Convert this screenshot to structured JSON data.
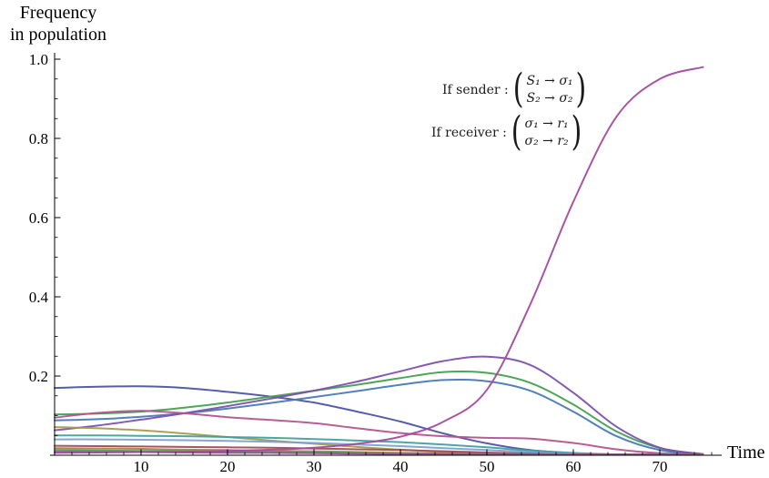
{
  "title": {
    "line1": "Frequency",
    "line2": "in population"
  },
  "x_axis_label": "Time",
  "annotations": {
    "sender": {
      "label": "If sender :",
      "rows": [
        "S₁ → σ₁",
        "S₂ → σ₂"
      ]
    },
    "receiver": {
      "label": "If receiver :",
      "rows": [
        "σ₁ → r₁",
        "σ₂ → r₂"
      ]
    }
  },
  "chart_data": {
    "type": "line",
    "title": "Frequency in population",
    "xlabel": "Time",
    "ylabel": "Frequency in population",
    "xlim": [
      0,
      77
    ],
    "ylim": [
      0,
      1.0
    ],
    "grid": false,
    "legend_position": "none",
    "x_ticks": [
      10,
      20,
      30,
      40,
      50,
      60,
      70
    ],
    "x_minor_step": 2,
    "x_minor_max": 76,
    "y_ticks": [
      0.2,
      0.4,
      0.6,
      0.8,
      1.0
    ],
    "y_tick_labels": [
      "0.2",
      "0.4",
      "0.6",
      "0.8",
      "1.0"
    ],
    "y_minor_step": 0.05,
    "x": [
      0,
      5,
      10,
      15,
      20,
      25,
      30,
      35,
      40,
      45,
      50,
      55,
      60,
      65,
      70,
      75
    ],
    "series": [
      {
        "name": "indigo",
        "color": "#4a51a4",
        "values": [
          0.17,
          0.173,
          0.174,
          0.17,
          0.16,
          0.148,
          0.133,
          0.11,
          0.085,
          0.055,
          0.03,
          0.013,
          0.005,
          0.002,
          0.001,
          0.0
        ]
      },
      {
        "name": "green",
        "color": "#3f9e4b",
        "values": [
          0.103,
          0.105,
          0.11,
          0.12,
          0.133,
          0.148,
          0.163,
          0.178,
          0.195,
          0.21,
          0.208,
          0.183,
          0.128,
          0.06,
          0.018,
          0.003
        ]
      },
      {
        "name": "steel-blue",
        "color": "#4576b5",
        "values": [
          0.088,
          0.091,
          0.097,
          0.106,
          0.118,
          0.132,
          0.147,
          0.162,
          0.178,
          0.19,
          0.187,
          0.163,
          0.11,
          0.048,
          0.013,
          0.002
        ]
      },
      {
        "name": "violet",
        "color": "#7b4fae",
        "values": [
          0.063,
          0.075,
          0.09,
          0.106,
          0.124,
          0.143,
          0.163,
          0.186,
          0.212,
          0.238,
          0.249,
          0.228,
          0.158,
          0.072,
          0.019,
          0.003
        ]
      },
      {
        "name": "rose",
        "color": "#b1538c",
        "values": [
          0.095,
          0.107,
          0.112,
          0.106,
          0.096,
          0.089,
          0.081,
          0.068,
          0.056,
          0.048,
          0.044,
          0.042,
          0.031,
          0.015,
          0.005,
          0.001
        ]
      },
      {
        "name": "olive",
        "color": "#a39a48",
        "values": [
          0.071,
          0.068,
          0.063,
          0.055,
          0.046,
          0.037,
          0.029,
          0.021,
          0.014,
          0.009,
          0.005,
          0.003,
          0.002,
          0.001,
          0.0,
          0.0
        ]
      },
      {
        "name": "teal",
        "color": "#3e9f9b",
        "values": [
          0.05,
          0.05,
          0.049,
          0.048,
          0.046,
          0.044,
          0.041,
          0.037,
          0.033,
          0.027,
          0.02,
          0.012,
          0.006,
          0.002,
          0.001,
          0.0
        ]
      },
      {
        "name": "light-blue",
        "color": "#7b9fd4",
        "values": [
          0.04,
          0.04,
          0.039,
          0.038,
          0.036,
          0.034,
          0.031,
          0.027,
          0.023,
          0.018,
          0.013,
          0.008,
          0.004,
          0.002,
          0.001,
          0.0
        ]
      },
      {
        "name": "dark-red",
        "color": "#a04a4e",
        "values": [
          0.024,
          0.023,
          0.022,
          0.021,
          0.02,
          0.019,
          0.017,
          0.015,
          0.013,
          0.01,
          0.007,
          0.004,
          0.002,
          0.001,
          0.0,
          0.0
        ]
      },
      {
        "name": "tan-brown",
        "color": "#a97f4c",
        "values": [
          0.018,
          0.017,
          0.016,
          0.014,
          0.013,
          0.011,
          0.01,
          0.008,
          0.006,
          0.005,
          0.003,
          0.002,
          0.001,
          0.0,
          0.0,
          0.0
        ]
      },
      {
        "name": "low-green",
        "color": "#4c9e58",
        "values": [
          0.013,
          0.012,
          0.011,
          0.01,
          0.009,
          0.008,
          0.007,
          0.006,
          0.005,
          0.004,
          0.003,
          0.002,
          0.001,
          0.001,
          0.0,
          0.0
        ]
      },
      {
        "name": "plum",
        "color": "#9c4f93",
        "values": [
          0.009,
          0.008,
          0.008,
          0.007,
          0.006,
          0.006,
          0.005,
          0.004,
          0.003,
          0.002,
          0.002,
          0.001,
          0.001,
          0.0,
          0.0,
          0.0
        ]
      },
      {
        "name": "magenta-winner",
        "color": "#a3489f",
        "values": [
          0.006,
          0.007,
          0.008,
          0.009,
          0.011,
          0.014,
          0.019,
          0.029,
          0.047,
          0.085,
          0.165,
          0.38,
          0.64,
          0.855,
          0.95,
          0.98
        ]
      }
    ]
  }
}
